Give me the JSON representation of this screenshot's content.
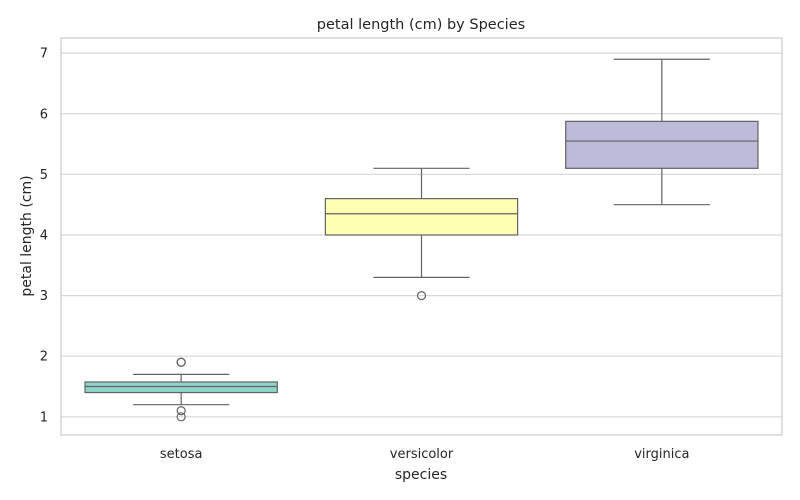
{
  "chart_data": {
    "type": "box",
    "title": "petal length (cm) by Species",
    "xlabel": "species",
    "ylabel": "petal length (cm)",
    "ylim": [
      0.7,
      7.25
    ],
    "yticks": [
      1,
      2,
      3,
      4,
      5,
      6,
      7
    ],
    "grid": true,
    "categories": [
      "setosa",
      "versicolor",
      "virginica"
    ],
    "boxes": [
      {
        "category": "setosa",
        "color": "#8dd3c7",
        "whisker_low": 1.2,
        "q1": 1.4,
        "median": 1.5,
        "q3": 1.575,
        "whisker_high": 1.7,
        "outliers": [
          1.0,
          1.1,
          1.9,
          1.9
        ]
      },
      {
        "category": "versicolor",
        "color": "#ffffb3",
        "whisker_low": 3.3,
        "q1": 4.0,
        "median": 4.35,
        "q3": 4.6,
        "whisker_high": 5.1,
        "outliers": [
          3.0
        ]
      },
      {
        "category": "virginica",
        "color": "#bebada",
        "whisker_low": 4.5,
        "q1": 5.1,
        "median": 5.55,
        "q3": 5.875,
        "whisker_high": 6.9,
        "outliers": []
      }
    ]
  }
}
